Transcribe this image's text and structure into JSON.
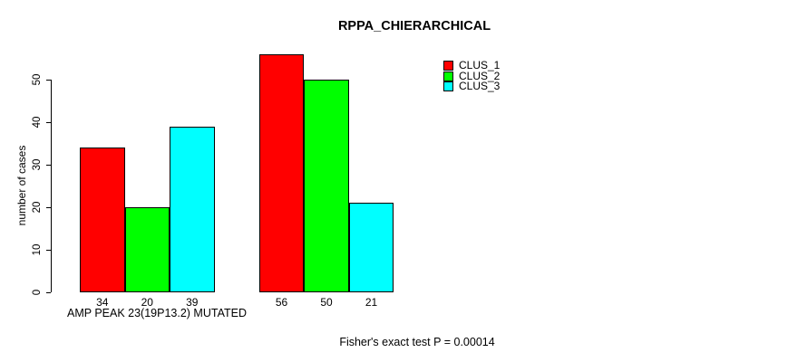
{
  "title": "RPPA_CHIERARCHICAL",
  "y_axis": {
    "label": "number of cases",
    "ticks": [
      0,
      10,
      20,
      30,
      40,
      50
    ]
  },
  "x_axis": {
    "group_label": "AMP PEAK 23(19P13.2) MUTATED"
  },
  "footer": "Fisher's exact test P = 0.00014",
  "legend": {
    "position": "top-right",
    "items": [
      {
        "label": "CLUS_1",
        "color": "#FF0000"
      },
      {
        "label": "CLUS_2",
        "color": "#00FF00"
      },
      {
        "label": "CLUS_3",
        "color": "#00FFFF"
      }
    ]
  },
  "chart_data": {
    "type": "bar",
    "title": "RPPA_CHIERARCHICAL",
    "categories": [
      "AMP PEAK 23(19P13.2) MUTATED",
      ""
    ],
    "series": [
      {
        "name": "CLUS_1",
        "color": "#FF0000",
        "values": [
          34,
          56
        ]
      },
      {
        "name": "CLUS_2",
        "color": "#00FF00",
        "values": [
          20,
          50
        ]
      },
      {
        "name": "CLUS_3",
        "color": "#00FFFF",
        "values": [
          39,
          21
        ]
      }
    ],
    "bar_labels": [
      [
        34,
        20,
        39
      ],
      [
        56,
        50,
        21
      ]
    ],
    "ylabel": "number of cases",
    "yticks": [
      0,
      10,
      20,
      30,
      40,
      50
    ],
    "ylim": [
      0,
      56
    ],
    "grid": false,
    "legend_position": "top-right",
    "annotation": "Fisher's exact test P = 0.00014",
    "bar_border_color": "#000000"
  }
}
